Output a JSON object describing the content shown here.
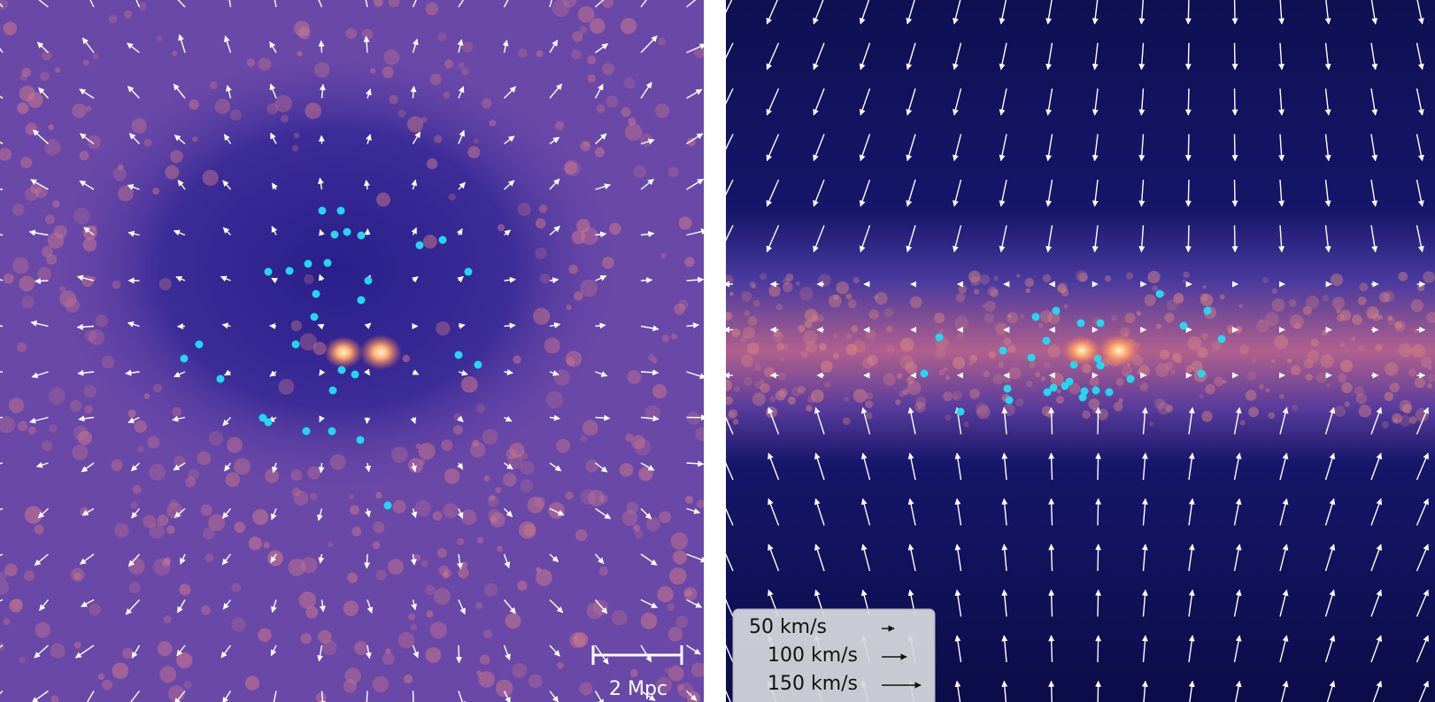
{
  "scale_bar": {
    "label": "2 Mpc"
  },
  "legend": {
    "entries": [
      "50 km/s",
      "100 km/s",
      "150 km/s"
    ]
  }
}
